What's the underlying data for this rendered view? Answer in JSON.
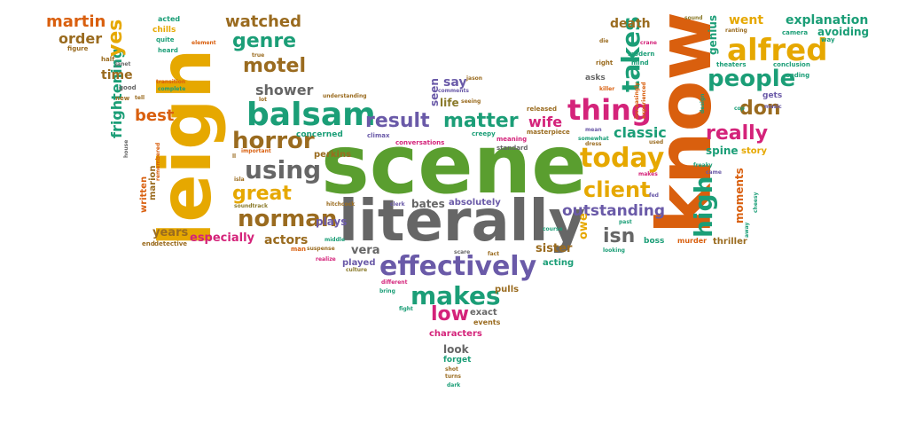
{
  "palette": {
    "orange": "#d95f0e",
    "gold": "#e6a800",
    "green": "#5a9e2f",
    "gray": "#666666",
    "teal": "#1b9e77",
    "purple": "#6a5aa8",
    "brown": "#9a6b1f",
    "pink": "#d4237a",
    "olive": "#8a7a2a"
  },
  "words": [
    {
      "t": "scene",
      "c": "green"
    },
    {
      "t": "literally",
      "c": "gray"
    },
    {
      "t": "leigh",
      "c": "gold"
    },
    {
      "t": "know",
      "c": "orange"
    },
    {
      "t": "effectively",
      "c": "purple"
    },
    {
      "t": "balsam",
      "c": "teal"
    },
    {
      "t": "alfred",
      "c": "gold"
    },
    {
      "t": "makes",
      "c": "teal"
    },
    {
      "t": "result",
      "c": "purple"
    },
    {
      "t": "matter",
      "c": "teal"
    },
    {
      "t": "thing",
      "c": "pink"
    },
    {
      "t": "today",
      "c": "gold"
    },
    {
      "t": "horror",
      "c": "brown"
    },
    {
      "t": "using",
      "c": "gray"
    },
    {
      "t": "norman",
      "c": "brown"
    },
    {
      "t": "great",
      "c": "gold"
    },
    {
      "t": "client",
      "c": "gold"
    },
    {
      "t": "people",
      "c": "teal"
    },
    {
      "t": "takes",
      "c": "teal"
    },
    {
      "t": "really",
      "c": "pink"
    },
    {
      "t": "don",
      "c": "brown"
    },
    {
      "t": "high",
      "c": "teal"
    },
    {
      "t": "genre",
      "c": "teal"
    },
    {
      "t": "motel",
      "c": "brown"
    },
    {
      "t": "low",
      "c": "pink"
    },
    {
      "t": "outstanding",
      "c": "purple"
    },
    {
      "t": "isn",
      "c": "gray"
    },
    {
      "t": "watched",
      "c": "brown"
    },
    {
      "t": "frightening",
      "c": "teal"
    },
    {
      "t": "yes",
      "c": "gold"
    },
    {
      "t": "martin",
      "c": "orange"
    },
    {
      "t": "order",
      "c": "brown"
    },
    {
      "t": "time",
      "c": "brown"
    },
    {
      "t": "best",
      "c": "orange"
    },
    {
      "t": "shower",
      "c": "gray"
    },
    {
      "t": "say",
      "c": "purple"
    },
    {
      "t": "seen",
      "c": "purple"
    },
    {
      "t": "life",
      "c": "olive"
    },
    {
      "t": "wife",
      "c": "pink"
    },
    {
      "t": "classic",
      "c": "teal"
    },
    {
      "t": "went",
      "c": "gold"
    },
    {
      "t": "explanation",
      "c": "teal"
    },
    {
      "t": "avoiding",
      "c": "teal"
    },
    {
      "t": "death",
      "c": "brown"
    },
    {
      "t": "genius",
      "c": "teal"
    },
    {
      "t": "moments",
      "c": "orange"
    },
    {
      "t": "spine",
      "c": "teal"
    },
    {
      "t": "story",
      "c": "gold"
    },
    {
      "t": "thriller",
      "c": "brown"
    },
    {
      "t": "boss",
      "c": "teal"
    },
    {
      "t": "murder",
      "c": "orange"
    },
    {
      "t": "years",
      "c": "brown"
    },
    {
      "t": "especially",
      "c": "pink"
    },
    {
      "t": "actors",
      "c": "brown"
    },
    {
      "t": "plays",
      "c": "purple"
    },
    {
      "t": "bates",
      "c": "gray"
    },
    {
      "t": "absolutely",
      "c": "purple"
    },
    {
      "t": "vera",
      "c": "gray"
    },
    {
      "t": "sister",
      "c": "brown"
    },
    {
      "t": "acting",
      "c": "teal"
    },
    {
      "t": "owe",
      "c": "gold"
    },
    {
      "t": "pulls",
      "c": "brown"
    },
    {
      "t": "played",
      "c": "purple"
    },
    {
      "t": "exact",
      "c": "gray"
    },
    {
      "t": "events",
      "c": "brown"
    },
    {
      "t": "characters",
      "c": "pink"
    },
    {
      "t": "look",
      "c": "gray"
    },
    {
      "t": "forget",
      "c": "teal"
    },
    {
      "t": "marion",
      "c": "brown"
    },
    {
      "t": "written",
      "c": "orange"
    },
    {
      "t": "perkins",
      "c": "brown"
    },
    {
      "t": "concerned",
      "c": "teal"
    },
    {
      "t": "chills",
      "c": "gold"
    },
    {
      "t": "acted",
      "c": "teal"
    },
    {
      "t": "quite",
      "c": "teal"
    },
    {
      "t": "heard",
      "c": "teal"
    },
    {
      "t": "figure",
      "c": "brown"
    },
    {
      "t": "half",
      "c": "brown"
    },
    {
      "t": "good",
      "c": "gray"
    },
    {
      "t": "new",
      "c": "brown"
    },
    {
      "t": "meaning",
      "c": "pink"
    },
    {
      "t": "creepy",
      "c": "teal"
    },
    {
      "t": "climax",
      "c": "purple"
    },
    {
      "t": "standard",
      "c": "gray"
    },
    {
      "t": "released",
      "c": "brown"
    },
    {
      "t": "masterpiece",
      "c": "brown"
    },
    {
      "t": "conversations",
      "c": "pink"
    },
    {
      "t": "somewhat",
      "c": "teal"
    },
    {
      "t": "mean",
      "c": "purple"
    },
    {
      "t": "modern",
      "c": "teal"
    },
    {
      "t": "mind",
      "c": "teal"
    },
    {
      "t": "right",
      "c": "brown"
    },
    {
      "t": "asks",
      "c": "gray"
    },
    {
      "t": "killer",
      "c": "orange"
    },
    {
      "t": "theaters",
      "c": "teal"
    },
    {
      "t": "conclusion",
      "c": "teal"
    },
    {
      "t": "ending",
      "c": "teal"
    },
    {
      "t": "gets",
      "c": "purple"
    },
    {
      "t": "music",
      "c": "purple"
    },
    {
      "t": "camera",
      "c": "teal"
    },
    {
      "t": "way",
      "c": "teal"
    },
    {
      "t": "ranting",
      "c": "brown"
    },
    {
      "t": "sound",
      "c": "olive"
    },
    {
      "t": "crane",
      "c": "pink"
    },
    {
      "t": "die",
      "c": "brown"
    },
    {
      "t": "freaky",
      "c": "teal"
    },
    {
      "t": "came",
      "c": "purple"
    },
    {
      "t": "cop",
      "c": "teal"
    },
    {
      "t": "used",
      "c": "brown"
    },
    {
      "t": "fact",
      "c": "brown"
    },
    {
      "t": "course",
      "c": "teal"
    },
    {
      "t": "past",
      "c": "teal"
    },
    {
      "t": "fed",
      "c": "purple"
    },
    {
      "t": "scare",
      "c": "gray"
    },
    {
      "t": "clerk",
      "c": "purple"
    },
    {
      "t": "middle",
      "c": "teal"
    },
    {
      "t": "realize",
      "c": "pink"
    },
    {
      "t": "culture",
      "c": "olive"
    },
    {
      "t": "different",
      "c": "pink"
    },
    {
      "t": "bring",
      "c": "teal"
    },
    {
      "t": "fight",
      "c": "teal"
    },
    {
      "t": "shot",
      "c": "brown"
    },
    {
      "t": "turns",
      "c": "brown"
    },
    {
      "t": "dark",
      "c": "teal"
    },
    {
      "t": "soundtrack",
      "c": "olive"
    },
    {
      "t": "hitchcock",
      "c": "brown"
    },
    {
      "t": "important",
      "c": "orange"
    },
    {
      "t": "detective",
      "c": "brown"
    },
    {
      "t": "end",
      "c": "brown"
    },
    {
      "t": "man",
      "c": "orange"
    },
    {
      "t": "suspense",
      "c": "brown"
    },
    {
      "t": "understanding",
      "c": "brown"
    },
    {
      "t": "comments",
      "c": "purple"
    },
    {
      "t": "seeing",
      "c": "brown"
    },
    {
      "t": "jason",
      "c": "brown"
    },
    {
      "t": "true",
      "c": "brown"
    },
    {
      "t": "element",
      "c": "orange"
    },
    {
      "t": "janet",
      "c": "gray"
    },
    {
      "t": "house",
      "c": "gray"
    },
    {
      "t": "remembered",
      "c": "orange"
    },
    {
      "t": "lot",
      "c": "brown"
    },
    {
      "t": "ll",
      "c": "brown"
    },
    {
      "t": "isla",
      "c": "brown"
    },
    {
      "t": "makes",
      "c": "pink"
    },
    {
      "t": "looking",
      "c": "teal"
    },
    {
      "t": "away",
      "c": "teal"
    },
    {
      "t": "dress",
      "c": "brown"
    },
    {
      "t": "experienced",
      "c": "orange"
    },
    {
      "t": "increasingly",
      "c": "orange"
    },
    {
      "t": "cheesy",
      "c": "teal"
    },
    {
      "t": "design",
      "c": "teal"
    },
    {
      "t": "tell",
      "c": "brown"
    },
    {
      "t": "complete",
      "c": "teal"
    },
    {
      "t": "transition",
      "c": "orange"
    }
  ]
}
